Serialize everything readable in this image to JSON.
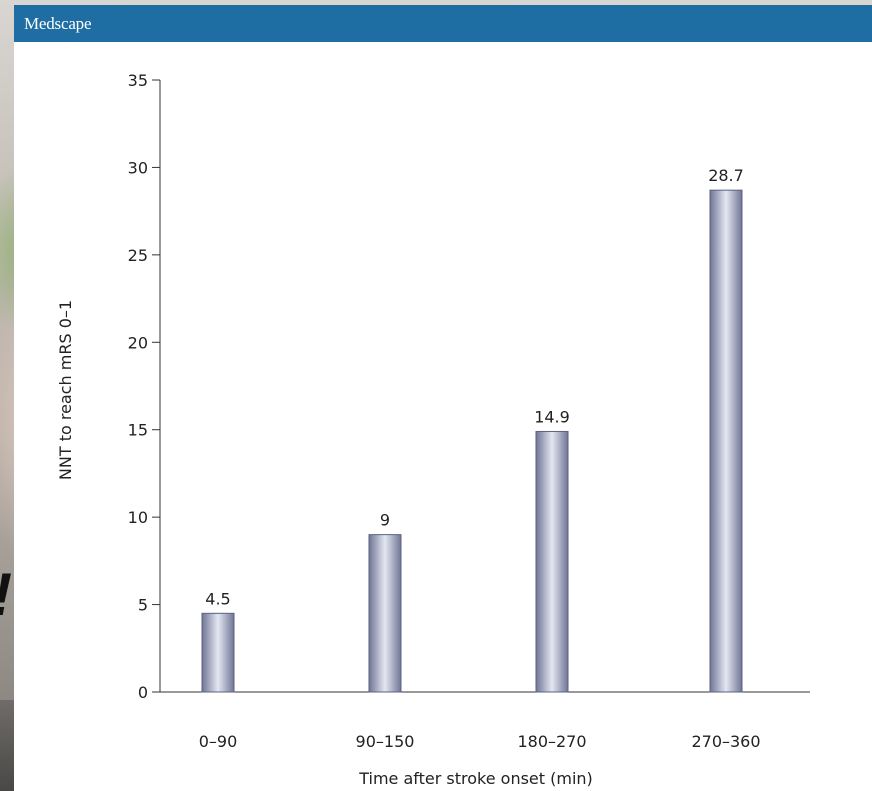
{
  "header": {
    "logo_text": "Medscape"
  },
  "colors": {
    "header_bg": "#1f6ea3",
    "bar_dark": "#6f7596",
    "bar_light": "#dfe2ee"
  },
  "chart_data": {
    "type": "bar",
    "categories": [
      "0–90",
      "90–150",
      "180–270",
      "270–360"
    ],
    "values": [
      4.5,
      9,
      14.9,
      28.7
    ],
    "data_labels": [
      "4.5",
      "9",
      "14.9",
      "28.7"
    ],
    "title": "",
    "xlabel": "Time after stroke onset (min)",
    "ylabel": "NNT to reach mRS 0–1",
    "ylim": [
      0,
      35
    ],
    "yticks": [
      0,
      5,
      10,
      15,
      20,
      25,
      30,
      35
    ],
    "ytick_labels": [
      "0",
      "5",
      "10",
      "15",
      "20",
      "25",
      "30",
      "35"
    ],
    "grid": false,
    "legend": "none"
  }
}
